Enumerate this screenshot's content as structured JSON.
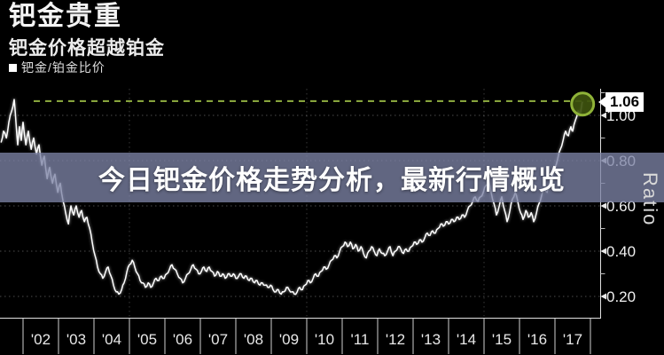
{
  "header": {
    "title": "钯金贵重",
    "subtitle": "钯金价格超越铂金"
  },
  "legend": {
    "label": "钯金/铂金比价",
    "swatch_color": "#ffffff"
  },
  "overlay": {
    "text": "今日钯金价格走势分析，最新行情概览"
  },
  "axis": {
    "y_title": "Ratio",
    "y_tick_labels": [
      "1.00",
      "0.80",
      "0.60",
      "0.40",
      "0.20"
    ],
    "y_tick_values": [
      1.0,
      0.8,
      0.6,
      0.4,
      0.2
    ],
    "x_tick_labels": [
      "'02",
      "'03",
      "'04",
      "'05",
      "'06",
      "'07",
      "'08",
      "'09",
      "'10",
      "'11",
      "'12",
      "'13",
      "'14",
      "'15",
      "'16",
      "'17"
    ],
    "last_price_label": "1.06"
  },
  "colors": {
    "background": "#000000",
    "banner": "rgba(124,131,165,0.78)",
    "series": "#ffffff",
    "dash_line": "#86a33c",
    "marker_fill": "#3e520e",
    "marker_ring": "#8fb338",
    "grid": "rgba(255,255,255,0.30)",
    "vgrid": "rgba(255,255,255,0.22)",
    "axis": "#e0e0e0"
  },
  "chart_data": {
    "type": "line",
    "title": "钯金贵重 — 钯金价格超越铂金",
    "ylabel": "Ratio",
    "ylim": [
      0.106,
      1.118
    ],
    "xlim": [
      2001.35,
      2018.35
    ],
    "grid": "dotted",
    "legend_position": "top-left",
    "y_ticks": [
      0.2,
      0.4,
      0.6,
      0.8,
      1.0
    ],
    "y_minor_ticks": [
      0.3,
      0.5,
      0.7,
      0.9,
      1.1
    ],
    "x_tick_years": [
      2002,
      2003,
      2004,
      2005,
      2006,
      2007,
      2008,
      2009,
      2010,
      2011,
      2012,
      2013,
      2014,
      2015,
      2016,
      2017
    ],
    "vgrid_years": [
      2005,
      2010,
      2015
    ],
    "annotations": {
      "dashed_level": 1.063,
      "marker_at": [
        2017.78,
        1.05
      ],
      "last_value": 1.06
    },
    "series": [
      {
        "name": "钯金/铂金比价",
        "points": [
          [
            2001.38,
            0.88
          ],
          [
            2001.45,
            0.93
          ],
          [
            2001.53,
            0.9
          ],
          [
            2001.6,
            0.97
          ],
          [
            2001.68,
            1.02
          ],
          [
            2001.75,
            1.07
          ],
          [
            2001.8,
            0.97
          ],
          [
            2001.85,
            0.87
          ],
          [
            2001.9,
            0.95
          ],
          [
            2001.95,
            0.89
          ],
          [
            2002.0,
            0.97
          ],
          [
            2002.08,
            0.87
          ],
          [
            2002.15,
            0.93
          ],
          [
            2002.23,
            0.85
          ],
          [
            2002.3,
            0.9
          ],
          [
            2002.38,
            0.83
          ],
          [
            2002.45,
            0.87
          ],
          [
            2002.53,
            0.78
          ],
          [
            2002.6,
            0.82
          ],
          [
            2002.68,
            0.72
          ],
          [
            2002.75,
            0.77
          ],
          [
            2002.83,
            0.7
          ],
          [
            2002.9,
            0.74
          ],
          [
            2002.98,
            0.66
          ],
          [
            2003.05,
            0.7
          ],
          [
            2003.13,
            0.62
          ],
          [
            2003.2,
            0.57
          ],
          [
            2003.28,
            0.52
          ],
          [
            2003.35,
            0.6
          ],
          [
            2003.43,
            0.56
          ],
          [
            2003.5,
            0.6
          ],
          [
            2003.58,
            0.55
          ],
          [
            2003.65,
            0.58
          ],
          [
            2003.73,
            0.53
          ],
          [
            2003.8,
            0.55
          ],
          [
            2003.88,
            0.5
          ],
          [
            2003.95,
            0.44
          ],
          [
            2004.03,
            0.38
          ],
          [
            2004.1,
            0.33
          ],
          [
            2004.18,
            0.3
          ],
          [
            2004.25,
            0.28
          ],
          [
            2004.33,
            0.31
          ],
          [
            2004.4,
            0.33
          ],
          [
            2004.48,
            0.29
          ],
          [
            2004.55,
            0.25
          ],
          [
            2004.63,
            0.22
          ],
          [
            2004.7,
            0.21
          ],
          [
            2004.78,
            0.23
          ],
          [
            2004.85,
            0.26
          ],
          [
            2004.93,
            0.31
          ],
          [
            2005.0,
            0.34
          ],
          [
            2005.08,
            0.36
          ],
          [
            2005.15,
            0.33
          ],
          [
            2005.23,
            0.3
          ],
          [
            2005.3,
            0.27
          ],
          [
            2005.38,
            0.26
          ],
          [
            2005.45,
            0.24
          ],
          [
            2005.53,
            0.26
          ],
          [
            2005.6,
            0.24
          ],
          [
            2005.68,
            0.26
          ],
          [
            2005.75,
            0.28
          ],
          [
            2005.83,
            0.27
          ],
          [
            2005.9,
            0.29
          ],
          [
            2005.98,
            0.28
          ],
          [
            2006.05,
            0.3
          ],
          [
            2006.13,
            0.32
          ],
          [
            2006.2,
            0.34
          ],
          [
            2006.28,
            0.32
          ],
          [
            2006.35,
            0.3
          ],
          [
            2006.43,
            0.28
          ],
          [
            2006.5,
            0.26
          ],
          [
            2006.58,
            0.28
          ],
          [
            2006.65,
            0.3
          ],
          [
            2006.73,
            0.32
          ],
          [
            2006.8,
            0.34
          ],
          [
            2006.88,
            0.32
          ],
          [
            2006.95,
            0.3
          ],
          [
            2007.03,
            0.31
          ],
          [
            2007.1,
            0.33
          ],
          [
            2007.18,
            0.31
          ],
          [
            2007.25,
            0.33
          ],
          [
            2007.33,
            0.31
          ],
          [
            2007.4,
            0.29
          ],
          [
            2007.48,
            0.31
          ],
          [
            2007.55,
            0.29
          ],
          [
            2007.63,
            0.3
          ],
          [
            2007.7,
            0.28
          ],
          [
            2007.78,
            0.3
          ],
          [
            2007.85,
            0.29
          ],
          [
            2007.93,
            0.3
          ],
          [
            2008.0,
            0.28
          ],
          [
            2008.08,
            0.29
          ],
          [
            2008.15,
            0.3
          ],
          [
            2008.23,
            0.28
          ],
          [
            2008.3,
            0.29
          ],
          [
            2008.38,
            0.27
          ],
          [
            2008.45,
            0.28
          ],
          [
            2008.53,
            0.26
          ],
          [
            2008.6,
            0.27
          ],
          [
            2008.68,
            0.25
          ],
          [
            2008.75,
            0.26
          ],
          [
            2008.83,
            0.25
          ],
          [
            2008.9,
            0.24
          ],
          [
            2008.98,
            0.25
          ],
          [
            2009.05,
            0.23
          ],
          [
            2009.13,
            0.22
          ],
          [
            2009.2,
            0.23
          ],
          [
            2009.28,
            0.21
          ],
          [
            2009.35,
            0.22
          ],
          [
            2009.43,
            0.24
          ],
          [
            2009.5,
            0.23
          ],
          [
            2009.58,
            0.22
          ],
          [
            2009.65,
            0.21
          ],
          [
            2009.73,
            0.22
          ],
          [
            2009.8,
            0.24
          ],
          [
            2009.88,
            0.23
          ],
          [
            2009.95,
            0.25
          ],
          [
            2010.03,
            0.27
          ],
          [
            2010.1,
            0.26
          ],
          [
            2010.18,
            0.28
          ],
          [
            2010.25,
            0.3
          ],
          [
            2010.33,
            0.29
          ],
          [
            2010.4,
            0.31
          ],
          [
            2010.48,
            0.33
          ],
          [
            2010.55,
            0.32
          ],
          [
            2010.63,
            0.34
          ],
          [
            2010.7,
            0.36
          ],
          [
            2010.78,
            0.38
          ],
          [
            2010.85,
            0.37
          ],
          [
            2010.93,
            0.4
          ],
          [
            2011.0,
            0.42
          ],
          [
            2011.08,
            0.44
          ],
          [
            2011.15,
            0.42
          ],
          [
            2011.23,
            0.44
          ],
          [
            2011.3,
            0.41
          ],
          [
            2011.38,
            0.43
          ],
          [
            2011.45,
            0.4
          ],
          [
            2011.53,
            0.42
          ],
          [
            2011.6,
            0.39
          ],
          [
            2011.68,
            0.37
          ],
          [
            2011.75,
            0.4
          ],
          [
            2011.83,
            0.42
          ],
          [
            2011.9,
            0.4
          ],
          [
            2011.98,
            0.38
          ],
          [
            2012.05,
            0.41
          ],
          [
            2012.13,
            0.39
          ],
          [
            2012.2,
            0.38
          ],
          [
            2012.28,
            0.4
          ],
          [
            2012.35,
            0.42
          ],
          [
            2012.43,
            0.38
          ],
          [
            2012.5,
            0.4
          ],
          [
            2012.58,
            0.42
          ],
          [
            2012.65,
            0.41
          ],
          [
            2012.73,
            0.39
          ],
          [
            2012.8,
            0.41
          ],
          [
            2012.88,
            0.4
          ],
          [
            2012.95,
            0.42
          ],
          [
            2013.03,
            0.44
          ],
          [
            2013.1,
            0.43
          ],
          [
            2013.18,
            0.45
          ],
          [
            2013.25,
            0.44
          ],
          [
            2013.33,
            0.46
          ],
          [
            2013.4,
            0.48
          ],
          [
            2013.48,
            0.47
          ],
          [
            2013.55,
            0.49
          ],
          [
            2013.63,
            0.48
          ],
          [
            2013.7,
            0.5
          ],
          [
            2013.78,
            0.52
          ],
          [
            2013.85,
            0.51
          ],
          [
            2013.93,
            0.53
          ],
          [
            2014.0,
            0.52
          ],
          [
            2014.08,
            0.54
          ],
          [
            2014.15,
            0.53
          ],
          [
            2014.23,
            0.55
          ],
          [
            2014.3,
            0.54
          ],
          [
            2014.38,
            0.56
          ],
          [
            2014.45,
            0.55
          ],
          [
            2014.53,
            0.58
          ],
          [
            2014.6,
            0.6
          ],
          [
            2014.68,
            0.62
          ],
          [
            2014.75,
            0.64
          ],
          [
            2014.83,
            0.62
          ],
          [
            2014.9,
            0.64
          ],
          [
            2014.98,
            0.66
          ],
          [
            2015.05,
            0.69
          ],
          [
            2015.13,
            0.71
          ],
          [
            2015.2,
            0.66
          ],
          [
            2015.28,
            0.61
          ],
          [
            2015.35,
            0.56
          ],
          [
            2015.43,
            0.6
          ],
          [
            2015.5,
            0.64
          ],
          [
            2015.58,
            0.58
          ],
          [
            2015.65,
            0.53
          ],
          [
            2015.73,
            0.58
          ],
          [
            2015.8,
            0.63
          ],
          [
            2015.88,
            0.66
          ],
          [
            2015.95,
            0.62
          ],
          [
            2016.03,
            0.57
          ],
          [
            2016.1,
            0.54
          ],
          [
            2016.18,
            0.58
          ],
          [
            2016.25,
            0.55
          ],
          [
            2016.33,
            0.57
          ],
          [
            2016.4,
            0.53
          ],
          [
            2016.48,
            0.57
          ],
          [
            2016.55,
            0.61
          ],
          [
            2016.63,
            0.65
          ],
          [
            2016.7,
            0.68
          ],
          [
            2016.78,
            0.66
          ],
          [
            2016.85,
            0.7
          ],
          [
            2016.93,
            0.73
          ],
          [
            2017.0,
            0.77
          ],
          [
            2017.08,
            0.81
          ],
          [
            2017.15,
            0.85
          ],
          [
            2017.23,
            0.89
          ],
          [
            2017.3,
            0.93
          ],
          [
            2017.38,
            0.91
          ],
          [
            2017.45,
            0.95
          ],
          [
            2017.5,
            0.93
          ],
          [
            2017.58,
            0.98
          ],
          [
            2017.65,
            1.02
          ],
          [
            2017.7,
            1.0
          ],
          [
            2017.75,
            1.04
          ],
          [
            2017.78,
            1.06
          ]
        ]
      }
    ]
  }
}
